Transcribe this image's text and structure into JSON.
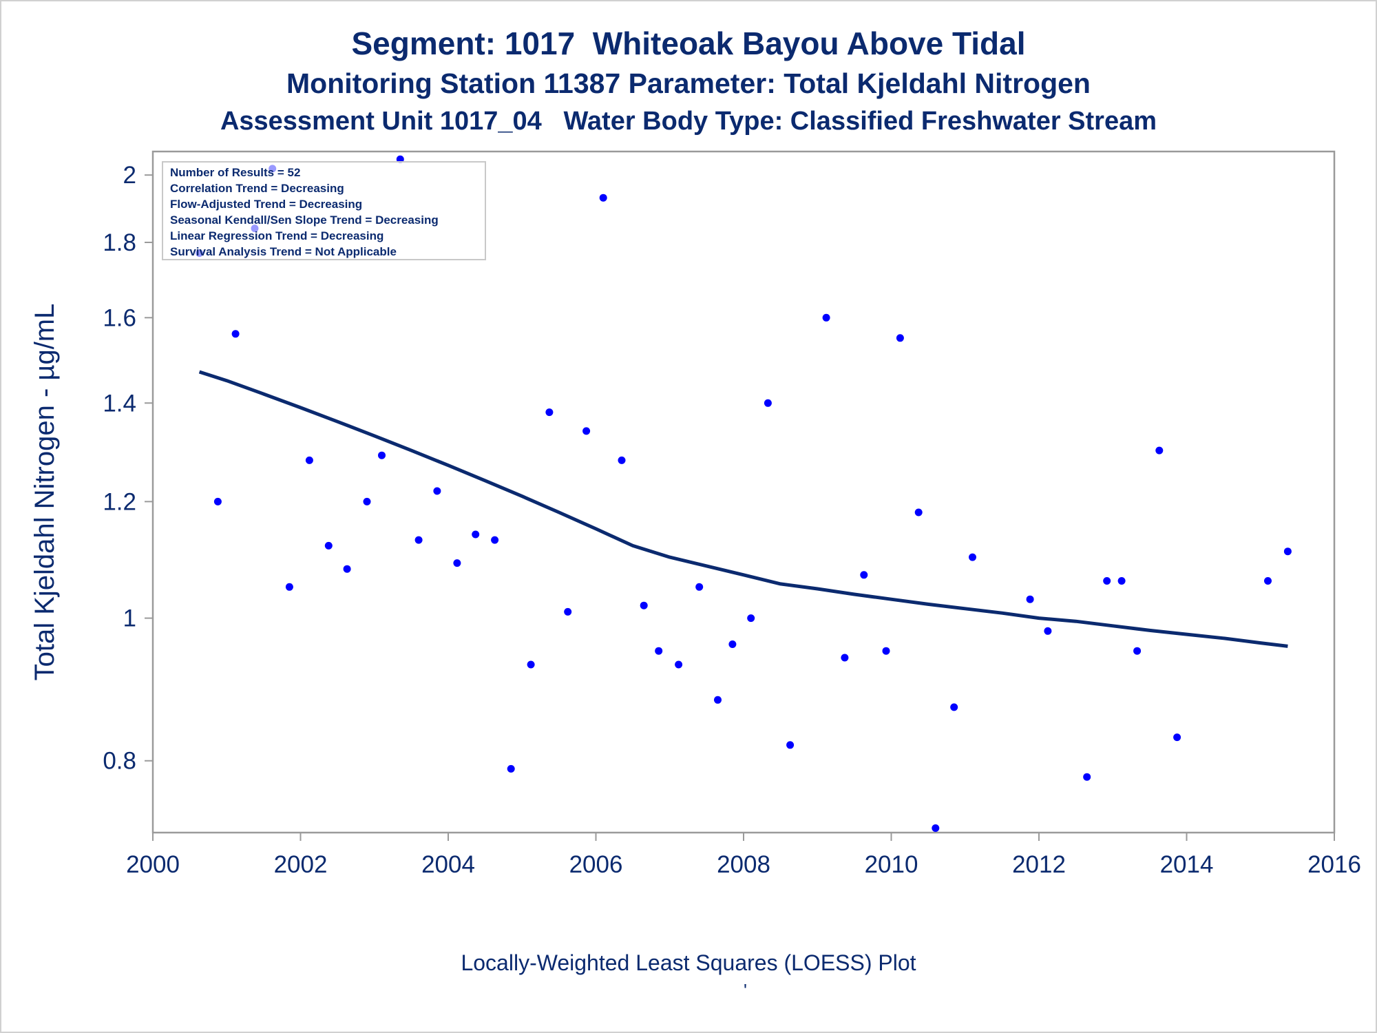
{
  "title": "Segment: 1017  Whiteoak Bayou Above Tidal",
  "subtitle1": "Monitoring Station 11387 Parameter: Total Kjeldahl Nitrogen",
  "subtitle2": "Assessment Unit 1017_04   Water Body Type: Classified Freshwater Stream",
  "footnote": "Locally-Weighted Least Squares (LOESS) Plot",
  "footnote_mark": "'",
  "colors": {
    "text": "#0b2a6f",
    "points": "#0000ff",
    "loess": "#0b2a6f",
    "frame": "#9a9a9a"
  },
  "stats_box": [
    "Number of Results = 52",
    "Correlation Trend = Decreasing",
    "Flow-Adjusted Trend = Decreasing",
    "Seasonal Kendall/Sen Slope Trend = Decreasing",
    "Linear Regression Trend = Decreasing",
    "Survival Analysis Trend = Not Applicable"
  ],
  "chart_data": {
    "type": "scatter",
    "title": "Segment: 1017  Whiteoak Bayou Above Tidal",
    "xlabel": "",
    "ylabel": "Total Kjeldahl Nitrogen -  µg/mL",
    "y_scale": "log",
    "xlim": [
      2000,
      2016
    ],
    "ylim": [
      0.715,
      2.075
    ],
    "x_ticks": [
      2000,
      2002,
      2004,
      2006,
      2008,
      2010,
      2012,
      2014,
      2016
    ],
    "y_ticks": [
      0.8,
      1,
      1.2,
      1.4,
      1.6,
      1.8,
      2
    ],
    "y_tick_labels": [
      "0.8",
      "1",
      "1.2",
      "1.4",
      "1.6",
      "1.8",
      "2"
    ],
    "grid": false,
    "legend": "top-left",
    "series": [
      {
        "type": "scatter",
        "x": [
          2000.63,
          2000.88,
          2001.12,
          2001.38,
          2001.62,
          2001.85,
          2002.12,
          2002.38,
          2002.63,
          2002.9,
          2003.1,
          2003.35,
          2003.6,
          2003.85,
          2004.12,
          2004.37,
          2004.63,
          2004.85,
          2005.12,
          2005.37,
          2005.62,
          2005.87,
          2006.1,
          2006.35,
          2006.65,
          2006.85,
          2007.12,
          2007.4,
          2007.65,
          2007.85,
          2008.1,
          2008.33,
          2008.63,
          2009.12,
          2009.37,
          2009.63,
          2009.93,
          2010.12,
          2010.37,
          2010.6,
          2010.85,
          2011.1,
          2011.88,
          2012.12,
          2012.65,
          2012.92,
          2013.12,
          2013.33,
          2013.63,
          2013.87,
          2015.1,
          2015.37
        ],
        "values": [
          1.77,
          1.2,
          1.56,
          1.84,
          2.02,
          1.05,
          1.28,
          1.12,
          1.08,
          1.2,
          1.29,
          2.05,
          1.13,
          1.22,
          1.09,
          1.14,
          1.13,
          0.79,
          0.93,
          1.38,
          1.01,
          1.34,
          1.93,
          1.28,
          1.02,
          0.95,
          0.93,
          1.05,
          0.88,
          0.96,
          1.0,
          1.4,
          0.82,
          1.6,
          0.94,
          1.07,
          0.95,
          1.55,
          1.18,
          0.72,
          0.87,
          1.1,
          1.03,
          0.98,
          0.78,
          1.06,
          1.06,
          0.95,
          1.3,
          0.83,
          1.06,
          1.11
        ]
      },
      {
        "type": "line",
        "x": [
          2000.63,
          2001.0,
          2001.5,
          2002.0,
          2002.5,
          2003.0,
          2003.5,
          2004.0,
          2004.5,
          2005.0,
          2005.5,
          2006.0,
          2006.5,
          2007.0,
          2007.5,
          2008.0,
          2008.5,
          2009.0,
          2009.5,
          2010.0,
          2010.5,
          2011.0,
          2011.5,
          2012.0,
          2012.5,
          2013.0,
          2013.5,
          2014.0,
          2014.5,
          2015.0,
          2015.37
        ],
        "values": [
          1.47,
          1.45,
          1.42,
          1.39,
          1.36,
          1.33,
          1.3,
          1.27,
          1.24,
          1.21,
          1.18,
          1.15,
          1.12,
          1.1,
          1.085,
          1.07,
          1.055,
          1.047,
          1.038,
          1.03,
          1.022,
          1.015,
          1.008,
          1.0,
          0.995,
          0.988,
          0.981,
          0.975,
          0.969,
          0.962,
          0.957
        ]
      }
    ]
  }
}
